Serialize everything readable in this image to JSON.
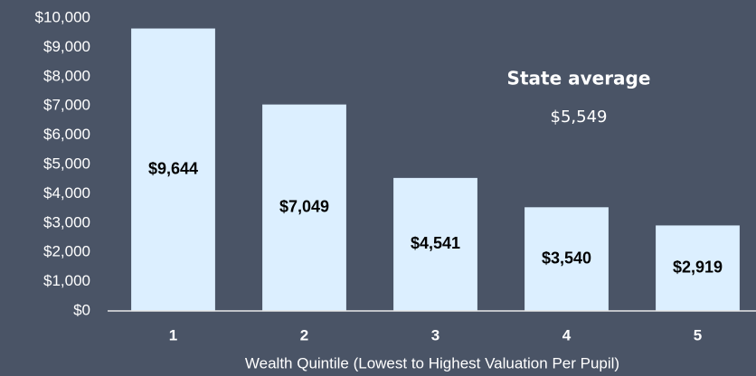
{
  "chart_data": {
    "type": "bar",
    "x_label": "Wealth Quintile (Lowest to Highest Valuation Per Pupil)",
    "categories": [
      "1",
      "2",
      "3",
      "4",
      "5"
    ],
    "values": [
      9644,
      7049,
      4541,
      3540,
      2919
    ],
    "value_labels": [
      "$9,644",
      "$7,049",
      "$4,541",
      "$3,540",
      "$2,919"
    ],
    "color": "#dcefff",
    "ylim": [
      0,
      10000
    ],
    "yticks": [
      {
        "value": 0,
        "label": "$0"
      },
      {
        "value": 1000,
        "label": "$1,000"
      },
      {
        "value": 2000,
        "label": "$2,000"
      },
      {
        "value": 3000,
        "label": "$3,000"
      },
      {
        "value": 4000,
        "label": "$4,000"
      },
      {
        "value": 5000,
        "label": "$5,000"
      },
      {
        "value": 6000,
        "label": "$6,000"
      },
      {
        "value": 7000,
        "label": "$7,000"
      },
      {
        "value": 8000,
        "label": "$8,000"
      },
      {
        "value": 9000,
        "label": "$9,000"
      },
      {
        "value": 10000,
        "label": "$10,000"
      }
    ],
    "grid": false,
    "annotation": {
      "title": "State average",
      "text": "$5,549"
    }
  }
}
